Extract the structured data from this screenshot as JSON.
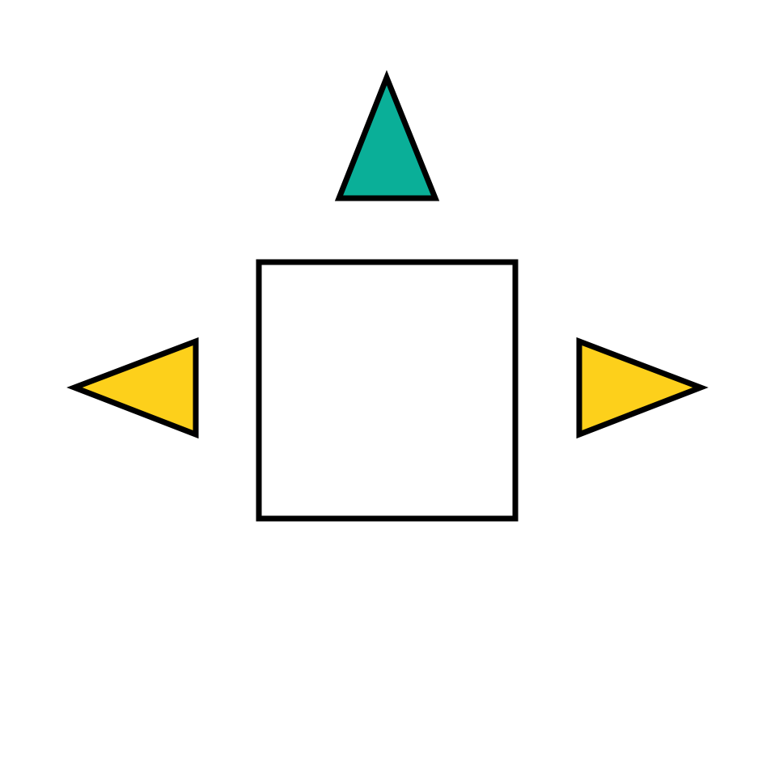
{
  "diagram": {
    "background_color": "#ffffff",
    "stroke_color": "#000000",
    "shapes": [
      {
        "kind": "triangle",
        "direction": "up",
        "fill_color": "#0aaf98",
        "role": "top"
      },
      {
        "kind": "square",
        "fill_color": "#ffffff",
        "role": "center"
      },
      {
        "kind": "triangle",
        "direction": "left",
        "fill_color": "#fdd01b",
        "role": "left"
      },
      {
        "kind": "triangle",
        "direction": "right",
        "fill_color": "#fdd01b",
        "role": "right"
      }
    ]
  }
}
